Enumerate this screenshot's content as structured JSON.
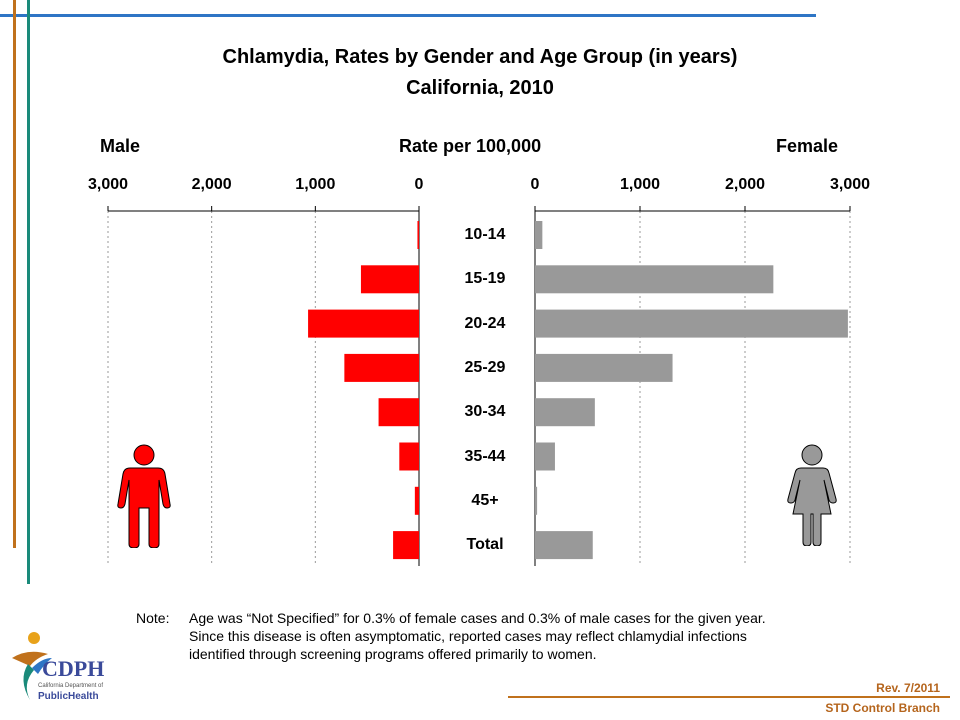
{
  "title_line1": "Chlamydia, Rates by Gender and Age Group (in years)",
  "title_line2": "California, 2010",
  "header": {
    "male": "Male",
    "center": "Rate per 100,000",
    "female": "Female"
  },
  "note": {
    "label": "Note:",
    "lines": [
      "Age was “Not Specified” for 0.3% of female cases and 0.3% of male cases for the given year.",
      "Since this disease is often asymptomatic, reported cases may reflect chlamydial infections",
      "identified through screening programs offered primarily to women."
    ]
  },
  "footer": {
    "rev": "Rev. 7/2011",
    "branch": "STD Control Branch"
  },
  "logo": {
    "text": "CDPH",
    "small": "California Department of",
    "sub": "PublicHealth"
  },
  "colors": {
    "male": "#ff0000",
    "female": "#999999",
    "blue_line": "#2e75c5",
    "orange_line": "#c0711c",
    "green_line": "#1a8a7a"
  },
  "chart_data": {
    "type": "bar",
    "orientation": "horizontal",
    "title": "Chlamydia, Rates by Gender and Age Group (in years) California, 2010",
    "xlabel": "Rate per 100,000",
    "categories": [
      "10-14",
      "15-19",
      "20-24",
      "25-29",
      "30-34",
      "35-44",
      "45+",
      "Total"
    ],
    "series": [
      {
        "name": "Male",
        "values": [
          15,
          560,
          1070,
          720,
          390,
          190,
          40,
          250
        ],
        "direction": "left"
      },
      {
        "name": "Female",
        "values": [
          70,
          2270,
          2980,
          1310,
          570,
          190,
          20,
          550
        ],
        "direction": "right"
      }
    ],
    "xlim": [
      0,
      3000
    ],
    "ticks": [
      0,
      1000,
      2000,
      3000
    ],
    "tick_labels": [
      "0",
      "1,000",
      "2,000",
      "3,000"
    ],
    "grid": true
  }
}
